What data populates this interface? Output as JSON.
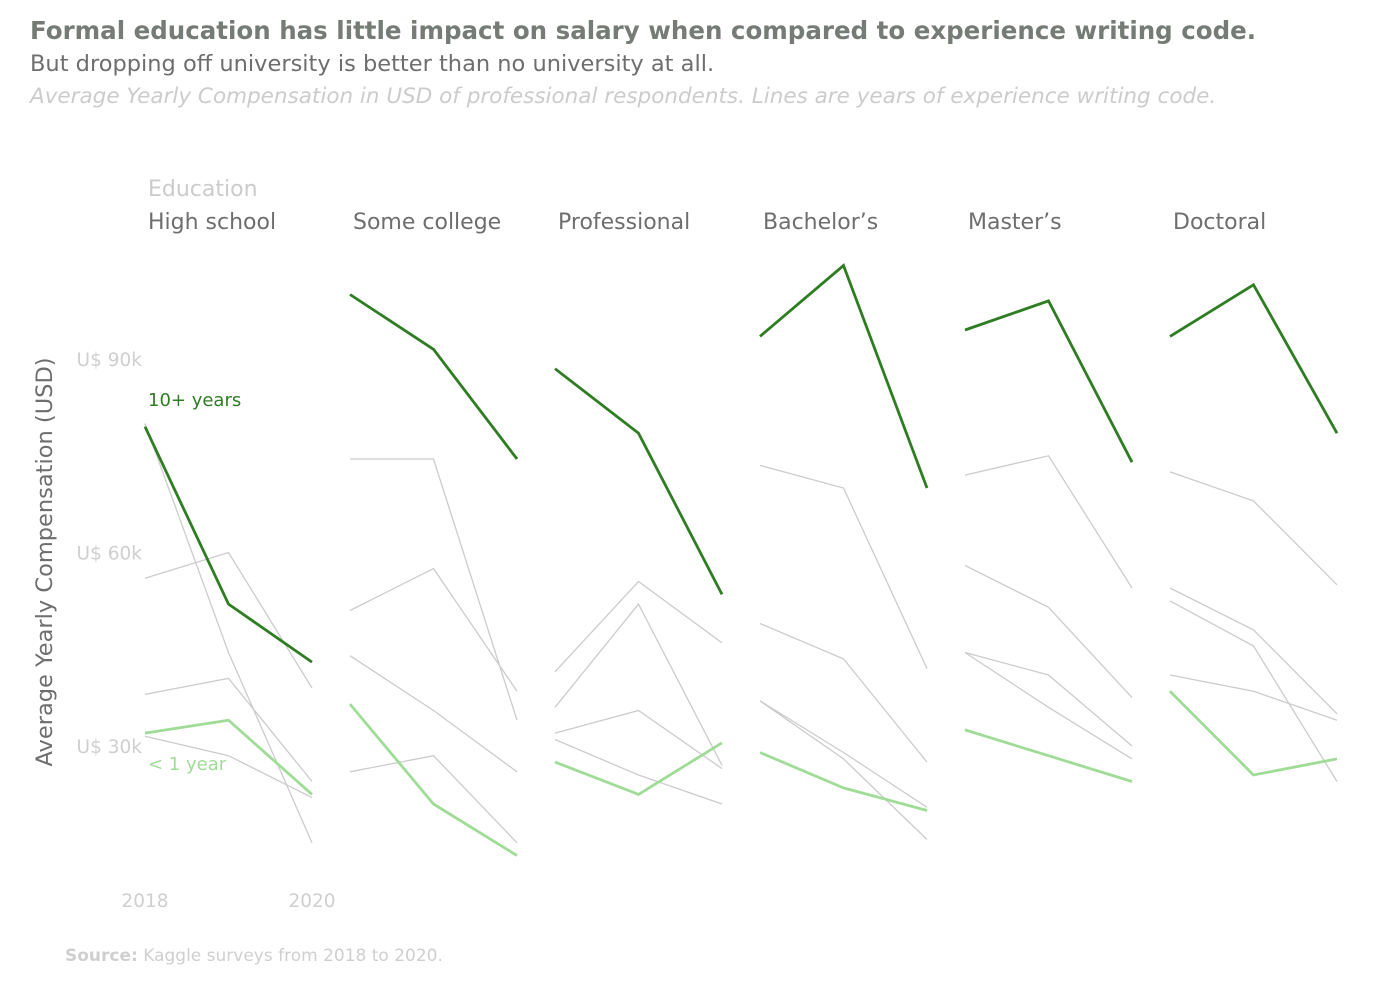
{
  "header": {
    "title": "Formal education has little impact on salary when compared to experience writing code.",
    "subtitle": "But dropping off university is better than no university at all.",
    "caption": "Average Yearly Compensation in USD of professional respondents. Lines are years of experience writing code."
  },
  "source": {
    "label": "Source:",
    "text": " Kaggle surveys from 2018 to 2020."
  },
  "chart_data": {
    "type": "line",
    "facet_title": "Education",
    "facets": [
      "High school",
      "Some college",
      "Professional",
      "Bachelor’s",
      "Master’s",
      "Doctoral"
    ],
    "x": [
      2018,
      2019,
      2020
    ],
    "x_tick_labels": [
      "2018",
      "2020"
    ],
    "ylabel": "Average Yearly Compensation (USD)",
    "ylim": [
      10000,
      105000
    ],
    "y_ticks": [
      30000,
      60000,
      90000
    ],
    "y_tick_labels": [
      "U$ 30k",
      "U$ 60k",
      "U$ 90k"
    ],
    "grid": false,
    "highlight_labels": {
      "top": "10+ years",
      "bottom": "< 1 year"
    },
    "colors": {
      "top": "#2e7d22",
      "bottom": "#a0dc98",
      "other": "#cccccc"
    },
    "panels": [
      {
        "facet": "High school",
        "series": [
          {
            "role": "other",
            "values": [
              80000,
              44500,
              15000
            ]
          },
          {
            "role": "other",
            "values": [
              56000,
              60000,
              39000
            ]
          },
          {
            "role": "other",
            "values": [
              38000,
              40500,
              24500
            ]
          },
          {
            "role": "other",
            "values": [
              31500,
              28500,
              22000
            ]
          },
          {
            "role": "top",
            "values": [
              79500,
              52000,
              43000
            ]
          },
          {
            "role": "bottom",
            "values": [
              32000,
              34000,
              22500
            ]
          }
        ]
      },
      {
        "facet": "Some college",
        "series": [
          {
            "role": "other",
            "values": [
              74500,
              74500,
              34000
            ]
          },
          {
            "role": "other",
            "values": [
              51000,
              57500,
              38500
            ]
          },
          {
            "role": "other",
            "values": [
              44000,
              35500,
              26000
            ]
          },
          {
            "role": "other",
            "values": [
              26000,
              28500,
              15000
            ]
          },
          {
            "role": "top",
            "values": [
              100000,
              91500,
              74500
            ]
          },
          {
            "role": "bottom",
            "values": [
              36500,
              21000,
              13000
            ]
          }
        ]
      },
      {
        "facet": "Professional",
        "series": [
          {
            "role": "other",
            "values": [
              41500,
              55500,
              46000
            ]
          },
          {
            "role": "other",
            "values": [
              36000,
              52000,
              27000
            ]
          },
          {
            "role": "other",
            "values": [
              32000,
              35500,
              26500
            ]
          },
          {
            "role": "other",
            "values": [
              31000,
              25500,
              21000
            ]
          },
          {
            "role": "top",
            "values": [
              88500,
              78500,
              53500
            ]
          },
          {
            "role": "bottom",
            "values": [
              27500,
              22500,
              30500
            ]
          }
        ]
      },
      {
        "facet": "Bachelor’s",
        "series": [
          {
            "role": "other",
            "values": [
              73500,
              70000,
              42000
            ]
          },
          {
            "role": "other",
            "values": [
              49000,
              43500,
              27500
            ]
          },
          {
            "role": "other",
            "values": [
              37000,
              28000,
              15500
            ]
          },
          {
            "role": "other",
            "values": [
              37000,
              29000,
              20500
            ]
          },
          {
            "role": "top",
            "values": [
              93500,
              104500,
              70000
            ]
          },
          {
            "role": "bottom",
            "values": [
              29000,
              23500,
              20000
            ]
          }
        ]
      },
      {
        "facet": "Master’s",
        "series": [
          {
            "role": "other",
            "values": [
              72000,
              75000,
              54500
            ]
          },
          {
            "role": "other",
            "values": [
              58000,
              51500,
              37500
            ]
          },
          {
            "role": "other",
            "values": [
              44500,
              41000,
              30000
            ]
          },
          {
            "role": "other",
            "values": [
              44500,
              36000,
              28000
            ]
          },
          {
            "role": "top",
            "values": [
              94500,
              99000,
              74000
            ]
          },
          {
            "role": "bottom",
            "values": [
              32500,
              28500,
              24500
            ]
          }
        ]
      },
      {
        "facet": "Doctoral",
        "series": [
          {
            "role": "other",
            "values": [
              72500,
              68000,
              55000
            ]
          },
          {
            "role": "other",
            "values": [
              54500,
              48000,
              35000
            ]
          },
          {
            "role": "other",
            "values": [
              52500,
              45500,
              24500
            ]
          },
          {
            "role": "other",
            "values": [
              41000,
              38500,
              34000
            ]
          },
          {
            "role": "top",
            "values": [
              93500,
              101500,
              78500
            ]
          },
          {
            "role": "bottom",
            "values": [
              38500,
              25500,
              28000
            ]
          }
        ]
      }
    ]
  }
}
